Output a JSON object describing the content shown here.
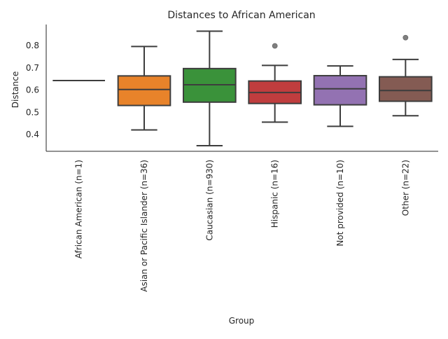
{
  "chart_data": {
    "type": "box",
    "title": "Distances to African American",
    "xlabel": "Group",
    "ylabel": "Distance",
    "ylim": [
      0.325,
      0.895
    ],
    "yticks": [
      0.4,
      0.5,
      0.6,
      0.7,
      0.8
    ],
    "ytick_labels": [
      "0.4",
      "0.5",
      "0.6",
      "0.7",
      "0.8"
    ],
    "grid": false,
    "categories": [
      "African American (n=1)",
      "Asian or Pacific Islander (n=36)",
      "Caucasian (n=930)",
      "Hispanic (n=16)",
      "Not provided (n=10)",
      "Other (n=22)"
    ],
    "boxes": [
      {
        "q1": 0.643,
        "median": 0.643,
        "q3": 0.643,
        "whisker_low": 0.643,
        "whisker_high": 0.643,
        "outliers": [],
        "color": "#1f77b4"
      },
      {
        "q1": 0.531,
        "median": 0.603,
        "q3": 0.664,
        "whisker_low": 0.421,
        "whisker_high": 0.796,
        "outliers": [],
        "color": "#e8832a"
      },
      {
        "q1": 0.546,
        "median": 0.624,
        "q3": 0.697,
        "whisker_low": 0.35,
        "whisker_high": 0.865,
        "outliers": [],
        "color": "#3a923a"
      },
      {
        "q1": 0.54,
        "median": 0.589,
        "q3": 0.641,
        "whisker_low": 0.456,
        "whisker_high": 0.711,
        "outliers": [
          0.799
        ],
        "color": "#c03d3e"
      },
      {
        "q1": 0.534,
        "median": 0.606,
        "q3": 0.665,
        "whisker_low": 0.437,
        "whisker_high": 0.709,
        "outliers": [],
        "color": "#9372b2"
      },
      {
        "q1": 0.55,
        "median": 0.598,
        "q3": 0.66,
        "whisker_low": 0.485,
        "whisker_high": 0.738,
        "outliers": [
          0.836
        ],
        "color": "#845b53"
      }
    ]
  }
}
